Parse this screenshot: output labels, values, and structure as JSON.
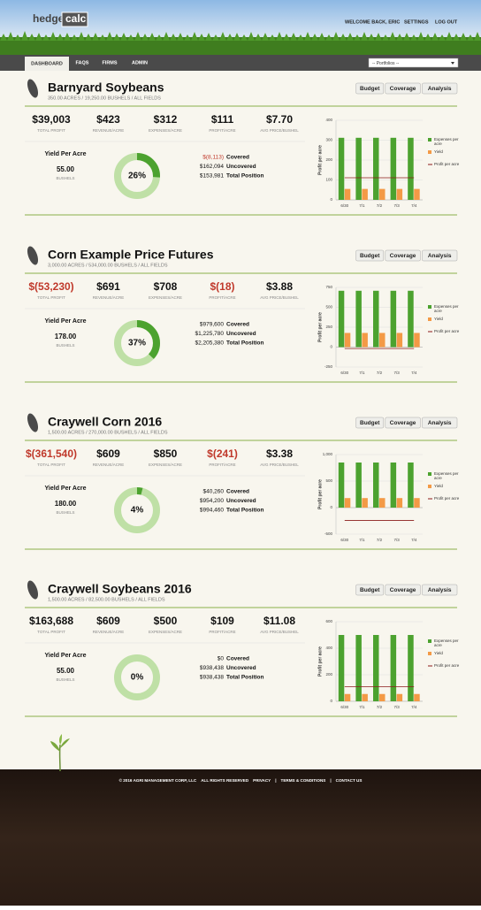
{
  "header": {
    "logo": [
      "hedge",
      "calc"
    ],
    "links": [
      "WELCOME BACK, ERIC",
      "SETTINGS",
      "LOG OUT"
    ]
  },
  "nav": {
    "tabs": [
      "DASHBOARD",
      "FAQS",
      "FIRMS",
      "ADMIN"
    ],
    "select": "-- Portfolios --"
  },
  "cards": [
    {
      "title": "Barnyard Soybeans",
      "subtitle": "350.00 ACRES / 19,250.00 BUSHELS / ALL FIELDS",
      "buttons": [
        "Budget",
        "Coverage",
        "Analysis"
      ],
      "stats": [
        {
          "value": "$39,003",
          "label": "TOTAL PROFIT"
        },
        {
          "value": "$423",
          "label": "REVENUE/ACRE"
        },
        {
          "value": "$312",
          "label": "EXPENSES/ACRE"
        },
        {
          "value": "$111",
          "label": "PROFIT/ACRE"
        },
        {
          "value": "$7.70",
          "label": "AVG PRICE/BUSHEL"
        }
      ],
      "yield": {
        "title": "Yield Per Acre",
        "value": "55.00",
        "unit": "BUSHELS"
      },
      "donut": {
        "value": 26,
        "label": "26%"
      },
      "coverage": [
        {
          "amount": "$(8,113)",
          "label": "Covered",
          "color": "#c0392b"
        },
        {
          "amount": "$162,094",
          "label": "Uncovered"
        },
        {
          "amount": "$153,981",
          "label": "Total Position"
        }
      ],
      "chart_data": {
        "type": "bar",
        "y_label": "Profit per acre",
        "categories": [
          "6/30",
          "7/1",
          "7/2",
          "7/3",
          "7/4"
        ],
        "ylim": [
          0,
          400
        ],
        "yticks": [
          0,
          100,
          200,
          300,
          400
        ],
        "series": [
          {
            "name": "Expenses per acre",
            "color": "#4ca22f",
            "type": "bar",
            "values": [
              312,
              312,
              312,
              312,
              312
            ]
          },
          {
            "name": "Yield",
            "color": "#f39a46",
            "type": "bar",
            "values": [
              55,
              55,
              55,
              55,
              55
            ]
          },
          {
            "name": "Profit per acre",
            "color": "#8b1a1a",
            "type": "line",
            "values": [
              111,
              111,
              111,
              111,
              111
            ]
          }
        ]
      }
    },
    {
      "title": "Corn Example Price Futures",
      "subtitle": "3,000.00 ACRES / 534,000.00 BUSHELS / ALL FIELDS",
      "buttons": [
        "Budget",
        "Coverage",
        "Analysis"
      ],
      "stats": [
        {
          "value": "$(53,230)",
          "label": "TOTAL PROFIT",
          "color": "#c0392b"
        },
        {
          "value": "$691",
          "label": "REVENUE/ACRE"
        },
        {
          "value": "$708",
          "label": "EXPENSES/ACRE"
        },
        {
          "value": "$(18)",
          "label": "PROFIT/ACRE",
          "color": "#c0392b"
        },
        {
          "value": "$3.88",
          "label": "AVG PRICE/BUSHEL"
        }
      ],
      "yield": {
        "title": "Yield Per Acre",
        "value": "178.00",
        "unit": "BUSHELS"
      },
      "donut": {
        "value": 37,
        "label": "37%"
      },
      "coverage": [
        {
          "amount": "$979,600",
          "label": "Covered"
        },
        {
          "amount": "$1,225,780",
          "label": "Uncovered"
        },
        {
          "amount": "$2,205,380",
          "label": "Total Position"
        }
      ],
      "chart_data": {
        "type": "bar",
        "y_label": "Profit per acre",
        "categories": [
          "6/30",
          "7/1",
          "7/2",
          "7/3",
          "7/4"
        ],
        "ylim": [
          -250,
          750
        ],
        "yticks": [
          -250,
          0,
          250,
          500,
          750
        ],
        "series": [
          {
            "name": "Expenses per acre",
            "color": "#4ca22f",
            "type": "bar",
            "values": [
              708,
              708,
              708,
              708,
              708
            ]
          },
          {
            "name": "Yield",
            "color": "#f39a46",
            "type": "bar",
            "values": [
              178,
              178,
              178,
              178,
              178
            ]
          },
          {
            "name": "Profit per acre",
            "color": "#8b1a1a",
            "type": "line",
            "values": [
              -18,
              -18,
              -18,
              -18,
              -18
            ]
          }
        ]
      }
    },
    {
      "title": "Craywell Corn 2016",
      "subtitle": "1,500.00 ACRES / 270,000.00 BUSHELS / ALL FIELDS",
      "buttons": [
        "Budget",
        "Coverage",
        "Analysis"
      ],
      "stats": [
        {
          "value": "$(361,540)",
          "label": "TOTAL PROFIT",
          "color": "#c0392b"
        },
        {
          "value": "$609",
          "label": "REVENUE/ACRE"
        },
        {
          "value": "$850",
          "label": "EXPENSES/ACRE"
        },
        {
          "value": "$(241)",
          "label": "PROFIT/ACRE",
          "color": "#c0392b"
        },
        {
          "value": "$3.38",
          "label": "AVG PRICE/BUSHEL"
        }
      ],
      "yield": {
        "title": "Yield Per Acre",
        "value": "180.00",
        "unit": "BUSHELS"
      },
      "donut": {
        "value": 4,
        "label": "4%"
      },
      "coverage": [
        {
          "amount": "$40,260",
          "label": "Covered"
        },
        {
          "amount": "$954,200",
          "label": "Uncovered"
        },
        {
          "amount": "$994,460",
          "label": "Total Position"
        }
      ],
      "chart_data": {
        "type": "bar",
        "y_label": "Profit per acre",
        "categories": [
          "6/30",
          "7/1",
          "7/2",
          "7/3",
          "7/4"
        ],
        "ylim": [
          -500,
          1000
        ],
        "yticks": [
          -500,
          0,
          500,
          {
            "value": 1000,
            "label": "1,000"
          }
        ],
        "series": [
          {
            "name": "Expenses per acre",
            "color": "#4ca22f",
            "type": "bar",
            "values": [
              850,
              850,
              850,
              850,
              850
            ]
          },
          {
            "name": "Yield",
            "color": "#f39a46",
            "type": "bar",
            "values": [
              180,
              180,
              180,
              180,
              180
            ]
          },
          {
            "name": "Profit per acre",
            "color": "#8b1a1a",
            "type": "line",
            "values": [
              -241,
              -241,
              -241,
              -241,
              -241
            ]
          }
        ]
      }
    },
    {
      "title": "Craywell Soybeans 2016",
      "subtitle": "1,500.00 ACRES / 82,500.00 BUSHELS / ALL FIELDS",
      "buttons": [
        "Budget",
        "Coverage",
        "Analysis"
      ],
      "stats": [
        {
          "value": "$163,688",
          "label": "TOTAL PROFIT"
        },
        {
          "value": "$609",
          "label": "REVENUE/ACRE"
        },
        {
          "value": "$500",
          "label": "EXPENSES/ACRE"
        },
        {
          "value": "$109",
          "label": "PROFIT/ACRE"
        },
        {
          "value": "$11.08",
          "label": "AVG PRICE/BUSHEL"
        }
      ],
      "yield": {
        "title": "Yield Per Acre",
        "value": "55.00",
        "unit": "BUSHELS"
      },
      "donut": {
        "value": 0,
        "label": "0%"
      },
      "coverage": [
        {
          "amount": "$0",
          "label": "Covered"
        },
        {
          "amount": "$938,438",
          "label": "Uncovered"
        },
        {
          "amount": "$938,438",
          "label": "Total Position"
        }
      ],
      "chart_data": {
        "type": "bar",
        "y_label": "Profit per acre",
        "categories": [
          "6/30",
          "7/1",
          "7/2",
          "7/3",
          "7/4"
        ],
        "ylim": [
          0,
          600
        ],
        "yticks": [
          0,
          200,
          400,
          600
        ],
        "series": [
          {
            "name": "Expenses per acre",
            "color": "#4ca22f",
            "type": "bar",
            "values": [
              500,
              500,
              500,
              500,
              500
            ]
          },
          {
            "name": "Yield",
            "color": "#f39a46",
            "type": "bar",
            "values": [
              55,
              55,
              55,
              55,
              55
            ]
          },
          {
            "name": "Profit per acre",
            "color": "#8b1a1a",
            "type": "line",
            "values": [
              109,
              109,
              109,
              109,
              109
            ]
          }
        ]
      }
    }
  ],
  "footer": {
    "items": [
      "© 2016 AGRI MANAGEMENT CORP, LLC",
      "ALL RIGHTS RESERVED",
      "PRIVACY",
      "TERMS & CONDITIONS",
      "CONTACT US"
    ]
  }
}
